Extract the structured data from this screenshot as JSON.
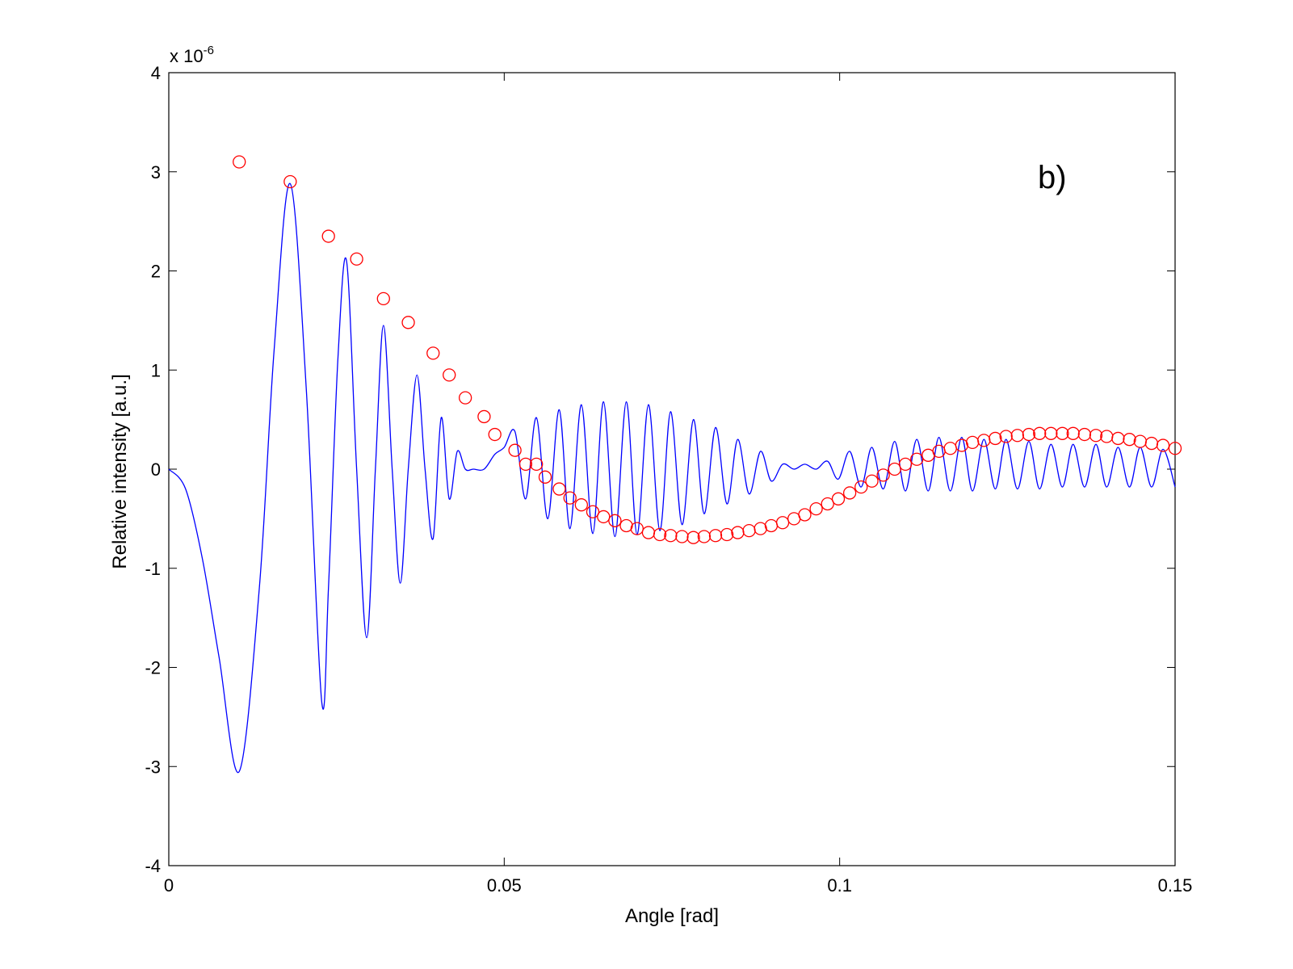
{
  "chart_data": {
    "type": "line",
    "title": "",
    "xlabel": "Angle [rad]",
    "ylabel": "Relative intensity [a.u.]",
    "xlim": [
      0,
      0.15
    ],
    "ylim": [
      -4,
      4
    ],
    "y_multiplier_label": "x 10",
    "y_multiplier_exponent": "-6",
    "x_ticks": [
      0,
      0.05,
      0.1,
      0.15
    ],
    "x_tick_labels": [
      "0",
      "0.05",
      "0.1",
      "0.15"
    ],
    "y_ticks": [
      -4,
      -3,
      -2,
      -1,
      0,
      1,
      2,
      3,
      4
    ],
    "y_tick_labels": [
      "-4",
      "-3",
      "-2",
      "-1",
      "0",
      "1",
      "2",
      "3",
      "4"
    ],
    "grid": false,
    "annotation": "b)",
    "colors": {
      "line": "#0000ff",
      "markers": "#ff0000",
      "axes": "#000000"
    },
    "series": [
      {
        "style": "line",
        "color": "#0000ff",
        "x": [
          0,
          0.0025,
          0.005,
          0.0075,
          0.0105,
          0.0135,
          0.0157,
          0.0181,
          0.0205,
          0.0228,
          0.0238,
          0.0252,
          0.0265,
          0.028,
          0.0295,
          0.0308,
          0.032,
          0.0333,
          0.0345,
          0.0357,
          0.037,
          0.0382,
          0.0394,
          0.0406,
          0.0418,
          0.043,
          0.0442,
          0.0454,
          0.047,
          0.0486,
          0.05,
          0.0516,
          0.0532,
          0.0548,
          0.0565,
          0.0582,
          0.0598,
          0.0615,
          0.0632,
          0.0648,
          0.0665,
          0.0682,
          0.0698,
          0.0715,
          0.0732,
          0.0748,
          0.0765,
          0.0782,
          0.0798,
          0.0815,
          0.0832,
          0.0848,
          0.0865,
          0.0882,
          0.0898,
          0.0915,
          0.0932,
          0.0948,
          0.0965,
          0.0982,
          0.0998,
          0.1015,
          0.1032,
          0.1048,
          0.1065,
          0.1082,
          0.1098,
          0.1115,
          0.1132,
          0.1148,
          0.1165,
          0.1182,
          0.1198,
          0.1215,
          0.1232,
          0.1248,
          0.1265,
          0.1282,
          0.1298,
          0.1315,
          0.1332,
          0.1348,
          0.1365,
          0.1382,
          0.1398,
          0.1415,
          0.1432,
          0.1448,
          0.1465,
          0.1482,
          0.15
        ],
        "y": [
          0,
          -0.2,
          -0.9,
          -1.9,
          -3.05,
          -1.2,
          1.2,
          2.88,
          0.8,
          -2.35,
          -1.2,
          1.1,
          2.1,
          0.0,
          -1.7,
          0.0,
          1.45,
          0.0,
          -1.15,
          0.0,
          0.95,
          0.0,
          -0.7,
          0.52,
          -0.3,
          0.18,
          0.0,
          0.0,
          0.0,
          0.15,
          0.22,
          0.38,
          -0.3,
          0.52,
          -0.5,
          0.6,
          -0.6,
          0.65,
          -0.65,
          0.68,
          -0.68,
          0.68,
          -0.66,
          0.65,
          -0.62,
          0.58,
          -0.56,
          0.5,
          -0.45,
          0.42,
          -0.35,
          0.3,
          -0.25,
          0.18,
          -0.12,
          0.05,
          0.0,
          0.05,
          0.0,
          0.08,
          -0.1,
          0.18,
          -0.18,
          0.22,
          -0.2,
          0.28,
          -0.22,
          0.3,
          -0.22,
          0.32,
          -0.22,
          0.32,
          -0.22,
          0.3,
          -0.2,
          0.3,
          -0.2,
          0.28,
          -0.2,
          0.25,
          -0.18,
          0.25,
          -0.18,
          0.25,
          -0.18,
          0.22,
          -0.18,
          0.22,
          -0.18,
          0.2,
          -0.18
        ]
      },
      {
        "style": "markers",
        "marker": "circle",
        "color": "#ff0000",
        "x": [
          0.0105,
          0.0181,
          0.0238,
          0.028,
          0.032,
          0.0357,
          0.0394,
          0.0418,
          0.0442,
          0.047,
          0.0486,
          0.0516,
          0.0532,
          0.0548,
          0.0561,
          0.0582,
          0.0598,
          0.0615,
          0.0632,
          0.0648,
          0.0665,
          0.0682,
          0.0698,
          0.0715,
          0.0732,
          0.0748,
          0.0765,
          0.0782,
          0.0798,
          0.0815,
          0.0832,
          0.0848,
          0.0865,
          0.0882,
          0.0898,
          0.0915,
          0.0932,
          0.0948,
          0.0965,
          0.0982,
          0.0998,
          0.1015,
          0.1032,
          0.1048,
          0.1065,
          0.1082,
          0.1098,
          0.1115,
          0.1132,
          0.1148,
          0.1165,
          0.1182,
          0.1198,
          0.1215,
          0.1232,
          0.1248,
          0.1265,
          0.1282,
          0.1298,
          0.1315,
          0.1332,
          0.1348,
          0.1365,
          0.1382,
          0.1398,
          0.1415,
          0.1432,
          0.1448,
          0.1465,
          0.1482,
          0.15
        ],
        "y": [
          3.1,
          2.9,
          2.35,
          2.12,
          1.72,
          1.48,
          1.17,
          0.95,
          0.72,
          0.53,
          0.35,
          0.19,
          0.05,
          0.05,
          -0.08,
          -0.2,
          -0.29,
          -0.36,
          -0.43,
          -0.48,
          -0.52,
          -0.57,
          -0.6,
          -0.64,
          -0.66,
          -0.67,
          -0.68,
          -0.69,
          -0.68,
          -0.67,
          -0.66,
          -0.64,
          -0.62,
          -0.6,
          -0.57,
          -0.54,
          -0.5,
          -0.46,
          -0.4,
          -0.35,
          -0.3,
          -0.24,
          -0.18,
          -0.12,
          -0.06,
          0.0,
          0.05,
          0.1,
          0.14,
          0.18,
          0.21,
          0.24,
          0.27,
          0.29,
          0.31,
          0.33,
          0.34,
          0.35,
          0.36,
          0.36,
          0.36,
          0.36,
          0.35,
          0.34,
          0.33,
          0.31,
          0.3,
          0.28,
          0.26,
          0.24,
          0.21
        ]
      }
    ]
  }
}
